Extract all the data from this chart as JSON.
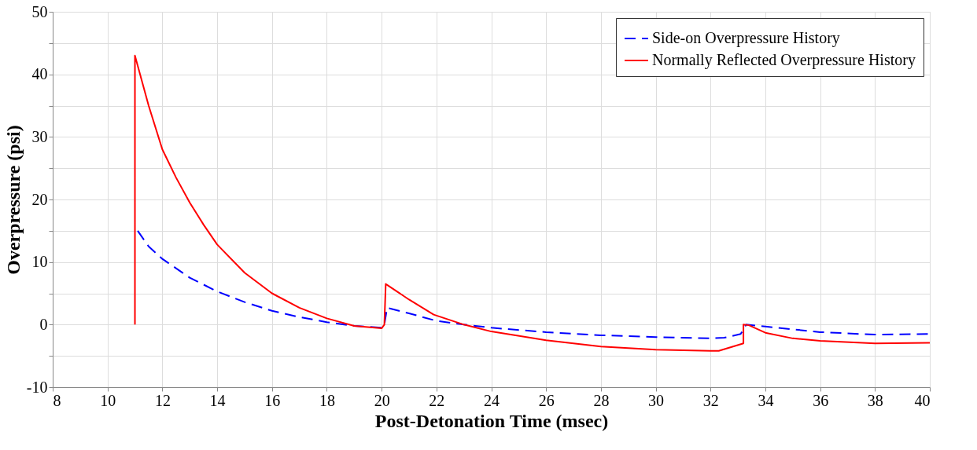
{
  "chart_data": {
    "type": "line",
    "xlabel": "Post-Detonation Time (msec)",
    "ylabel": "Overpressure (psi)",
    "xlim": [
      8,
      40
    ],
    "xticks": [
      8,
      10,
      12,
      14,
      16,
      18,
      20,
      22,
      24,
      26,
      28,
      30,
      32,
      34,
      36,
      38,
      40
    ],
    "ylim": [
      -10,
      50
    ],
    "yticks": [
      -10,
      {
        "value": -5,
        "label": null
      },
      0,
      {
        "value": 5,
        "label": null
      },
      10,
      {
        "value": 15,
        "label": null
      },
      20,
      {
        "value": 25,
        "label": null
      },
      30,
      {
        "value": 35,
        "label": null
      },
      40,
      {
        "value": 45,
        "label": null
      },
      50
    ],
    "grid": true,
    "legend": "top right",
    "marker": "none",
    "series": [
      {
        "name": "Side-on Overpressure History",
        "color": "#0000ff",
        "line_style": "dashed",
        "x": [
          11.1,
          11.5,
          12,
          13,
          14,
          15,
          16,
          17,
          18,
          19,
          20,
          20.1,
          20.2,
          21,
          22,
          23,
          24,
          26,
          28,
          30,
          32,
          32.5,
          33.1,
          33.3,
          34,
          36,
          38,
          40
        ],
        "values": [
          15,
          12.5,
          10.5,
          7.5,
          5.3,
          3.6,
          2.2,
          1.2,
          0.4,
          -0.2,
          -0.5,
          0,
          2.7,
          1.8,
          0.6,
          0,
          -0.5,
          -1.2,
          -1.7,
          -2,
          -2.2,
          -2.1,
          -1.5,
          0,
          -0.3,
          -1.2,
          -1.6,
          -1.5
        ]
      },
      {
        "name": "Normally Reflected Overpressure History",
        "color": "#ff0000",
        "line_style": "solid",
        "x": [
          11,
          11,
          11.5,
          12,
          12.5,
          13,
          13.5,
          14,
          15,
          16,
          17,
          18,
          19,
          20,
          20.1,
          20.15,
          21,
          21.9,
          23,
          24,
          26,
          28,
          30,
          31,
          32,
          32.3,
          33.2,
          33.2,
          33.4,
          34,
          35,
          36,
          38,
          40
        ],
        "values": [
          0,
          43,
          35,
          28,
          23.5,
          19.5,
          16,
          12.8,
          8.3,
          5,
          2.7,
          1,
          -0.2,
          -0.6,
          0,
          6.5,
          4,
          1.6,
          0,
          -1.1,
          -2.5,
          -3.5,
          -4,
          -4.1,
          -4.2,
          -4.2,
          -3,
          0,
          -0.1,
          -1.3,
          -2.2,
          -2.6,
          -3,
          -2.9
        ]
      }
    ]
  }
}
